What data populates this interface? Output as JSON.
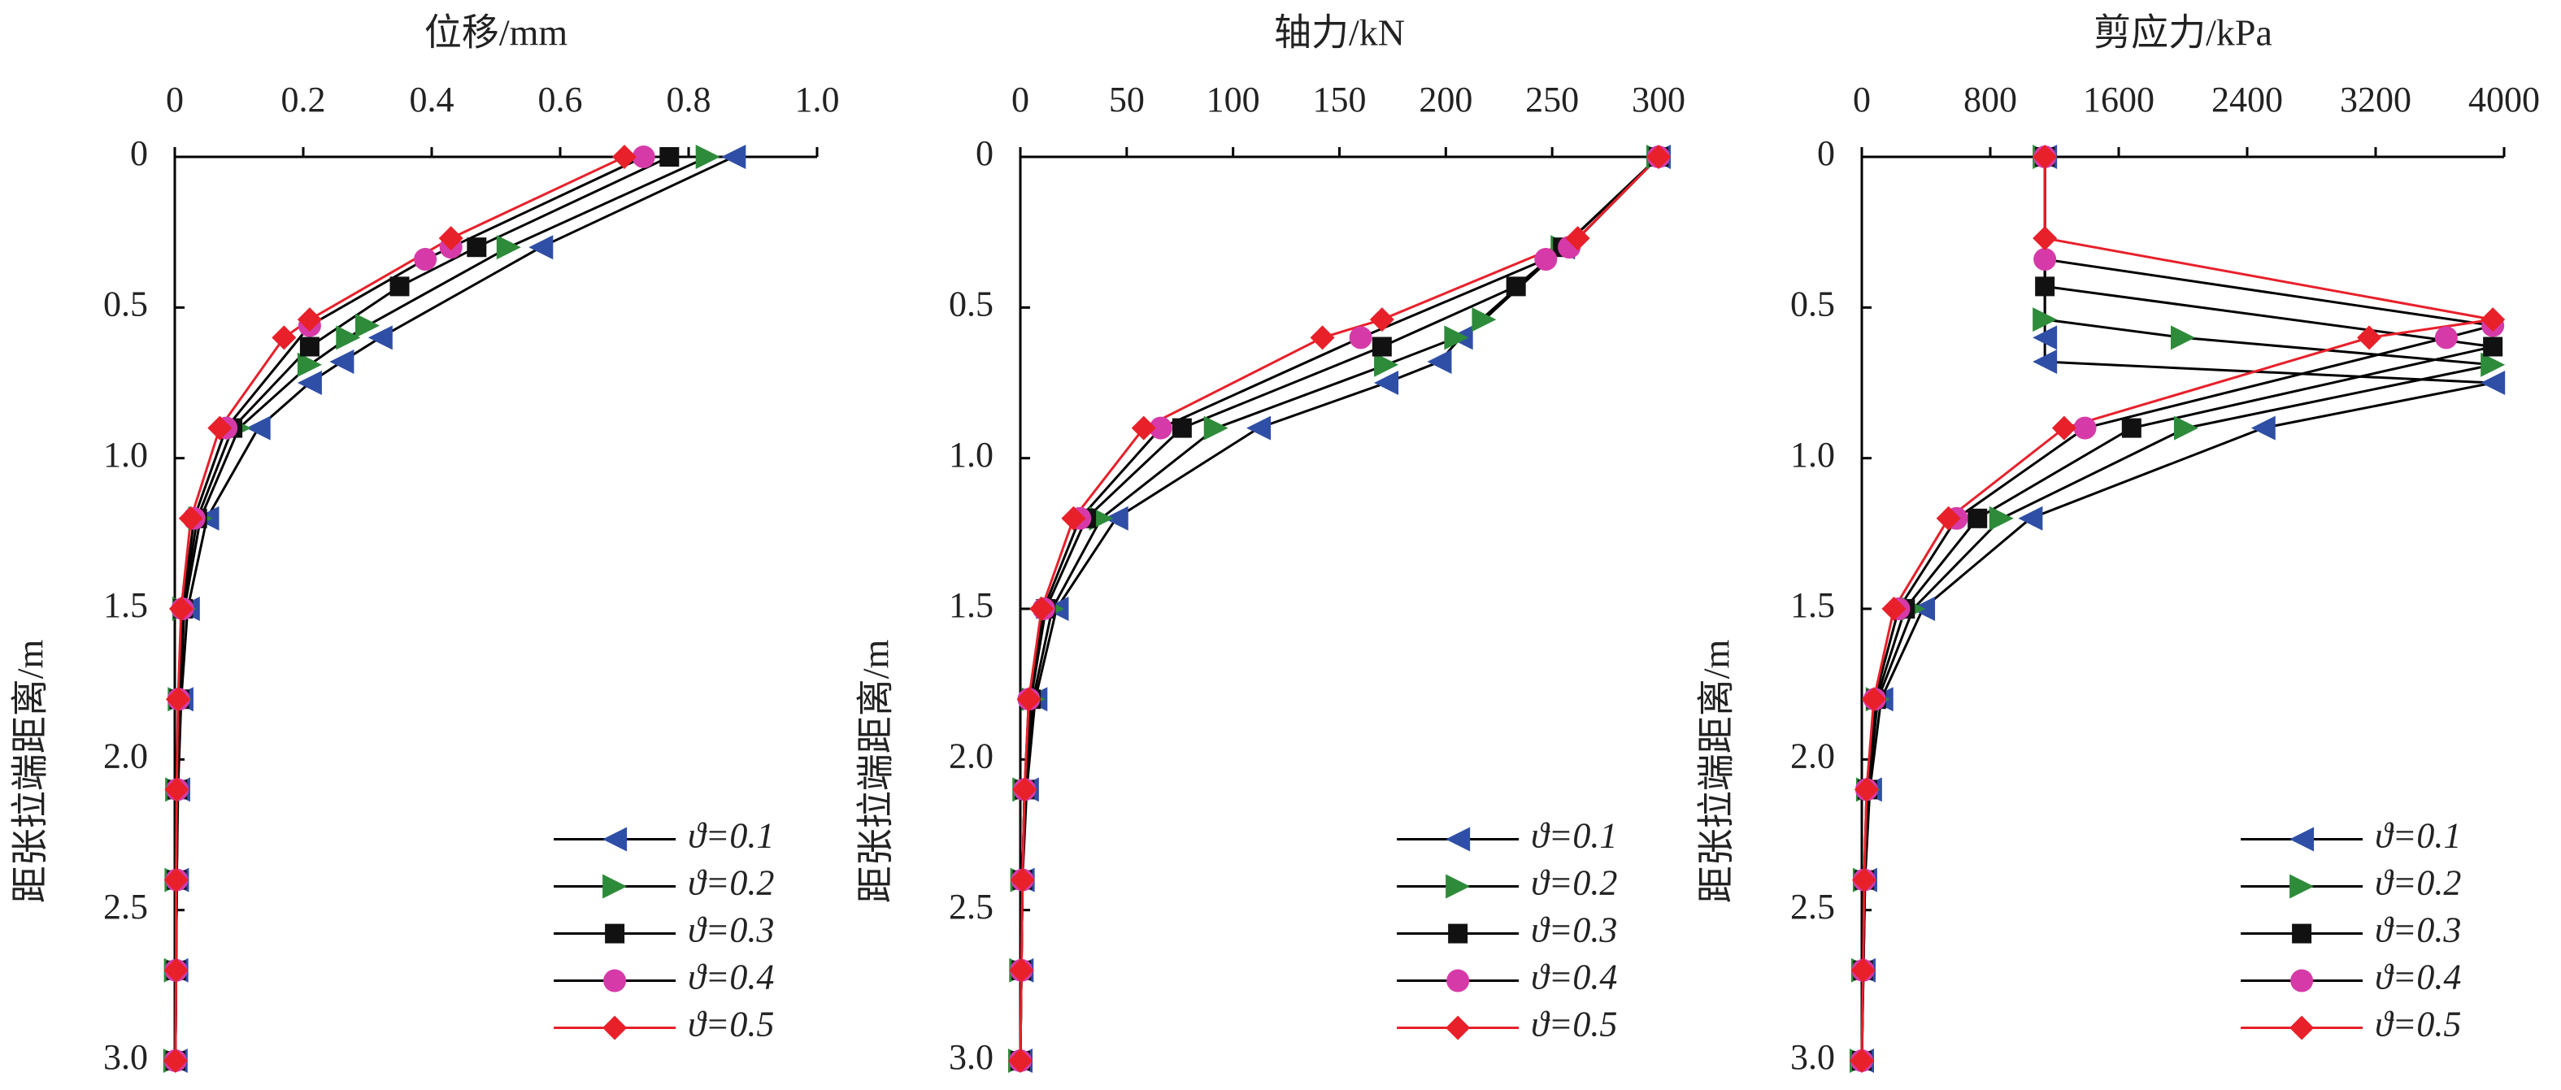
{
  "chart_data": [
    {
      "type": "line",
      "title": "位移/mm",
      "xlabel": "位移/mm",
      "ylabel": "距张拉端距离/m",
      "x_axis_position": "top",
      "y_inverted": true,
      "xlim": [
        0,
        1.0
      ],
      "ylim": [
        0,
        3.0
      ],
      "x_ticks": [
        "0",
        "0.2",
        "0.4",
        "0.6",
        "0.8",
        "1.0"
      ],
      "y_ticks": [
        "0",
        "0.5",
        "1.0",
        "1.5",
        "2.0",
        "2.5",
        "3.0"
      ],
      "legend_position": "bottom-right",
      "series": [
        {
          "name": "ϑ=0.1",
          "color": "#2f4fa6",
          "marker": "triangle-left",
          "points": [
            [
              0.87,
              0
            ],
            [
              0.57,
              0.3
            ],
            [
              0.32,
              0.6
            ],
            [
              0.26,
              0.68
            ],
            [
              0.21,
              0.75
            ],
            [
              0.13,
              0.9
            ],
            [
              0.05,
              1.2
            ],
            [
              0.02,
              1.5
            ],
            [
              0.01,
              1.8
            ],
            [
              0.005,
              2.1
            ],
            [
              0.003,
              2.4
            ],
            [
              0.002,
              2.7
            ],
            [
              0.001,
              3.0
            ]
          ]
        },
        {
          "name": "ϑ=0.2",
          "color": "#2e8b3a",
          "marker": "triangle-right",
          "points": [
            [
              0.83,
              0
            ],
            [
              0.52,
              0.3
            ],
            [
              0.3,
              0.56
            ],
            [
              0.27,
              0.6
            ],
            [
              0.21,
              0.69
            ],
            [
              0.1,
              0.9
            ],
            [
              0.04,
              1.2
            ],
            [
              0.015,
              1.5
            ],
            [
              0.008,
              1.8
            ],
            [
              0.004,
              2.1
            ],
            [
              0.003,
              2.4
            ],
            [
              0.002,
              2.7
            ],
            [
              0.001,
              3.0
            ]
          ]
        },
        {
          "name": "ϑ=0.3",
          "color": "#111111",
          "marker": "square",
          "points": [
            [
              0.77,
              0
            ],
            [
              0.47,
              0.3
            ],
            [
              0.35,
              0.43
            ],
            [
              0.21,
              0.63
            ],
            [
              0.09,
              0.9
            ],
            [
              0.035,
              1.2
            ],
            [
              0.013,
              1.5
            ],
            [
              0.007,
              1.8
            ],
            [
              0.004,
              2.1
            ],
            [
              0.003,
              2.4
            ],
            [
              0.002,
              2.7
            ],
            [
              0.001,
              3.0
            ]
          ]
        },
        {
          "name": "ϑ=0.4",
          "color": "#d63aa8",
          "marker": "circle",
          "points": [
            [
              0.73,
              0
            ],
            [
              0.43,
              0.3
            ],
            [
              0.39,
              0.34
            ],
            [
              0.21,
              0.56
            ],
            [
              0.08,
              0.9
            ],
            [
              0.03,
              1.2
            ],
            [
              0.012,
              1.5
            ],
            [
              0.006,
              1.8
            ],
            [
              0.004,
              2.1
            ],
            [
              0.003,
              2.4
            ],
            [
              0.002,
              2.7
            ],
            [
              0.001,
              3.0
            ]
          ]
        },
        {
          "name": "ϑ=0.5",
          "color": "#e8202a",
          "marker": "diamond",
          "line_color": "#e8202a",
          "points": [
            [
              0.7,
              0
            ],
            [
              0.43,
              0.27
            ],
            [
              0.21,
              0.54
            ],
            [
              0.17,
              0.6
            ],
            [
              0.07,
              0.9
            ],
            [
              0.025,
              1.2
            ],
            [
              0.01,
              1.5
            ],
            [
              0.005,
              1.8
            ],
            [
              0.003,
              2.1
            ],
            [
              0.002,
              2.4
            ],
            [
              0.002,
              2.7
            ],
            [
              0.001,
              3.0
            ]
          ]
        }
      ]
    },
    {
      "type": "line",
      "title": "轴力/kN",
      "xlabel": "轴力/kN",
      "ylabel": "距张拉端距离/m",
      "x_axis_position": "top",
      "y_inverted": true,
      "xlim": [
        0,
        300
      ],
      "ylim": [
        0,
        3.0
      ],
      "x_ticks": [
        "0",
        "50",
        "100",
        "150",
        "200",
        "250",
        "300"
      ],
      "y_ticks": [
        "0",
        "0.5",
        "1.0",
        "1.5",
        "2.0",
        "2.5",
        "3.0"
      ],
      "legend_position": "bottom-right",
      "series": [
        {
          "name": "ϑ=0.1",
          "color": "#2f4fa6",
          "marker": "triangle-left",
          "points": [
            [
              300,
              0
            ],
            [
              255,
              0.3
            ],
            [
              207,
              0.6
            ],
            [
              197,
              0.68
            ],
            [
              172,
              0.75
            ],
            [
              112,
              0.9
            ],
            [
              45,
              1.2
            ],
            [
              17,
              1.5
            ],
            [
              7,
              1.8
            ],
            [
              3,
              2.1
            ],
            [
              1,
              2.4
            ],
            [
              0.5,
              2.7
            ],
            [
              0,
              3.0
            ]
          ]
        },
        {
          "name": "ϑ=0.2",
          "color": "#2e8b3a",
          "marker": "triangle-right",
          "points": [
            [
              300,
              0
            ],
            [
              255,
              0.3
            ],
            [
              218,
              0.54
            ],
            [
              205,
              0.6
            ],
            [
              172,
              0.69
            ],
            [
              92,
              0.9
            ],
            [
              38,
              1.2
            ],
            [
              15,
              1.5
            ],
            [
              6,
              1.8
            ],
            [
              2,
              2.1
            ],
            [
              1,
              2.4
            ],
            [
              0.5,
              2.7
            ],
            [
              0,
              3.0
            ]
          ]
        },
        {
          "name": "ϑ=0.3",
          "color": "#111111",
          "marker": "square",
          "points": [
            [
              300,
              0
            ],
            [
              255,
              0.3
            ],
            [
              233,
              0.43
            ],
            [
              170,
              0.63
            ],
            [
              76,
              0.9
            ],
            [
              31,
              1.2
            ],
            [
              12,
              1.5
            ],
            [
              5,
              1.8
            ],
            [
              2,
              2.1
            ],
            [
              1,
              2.4
            ],
            [
              0.5,
              2.7
            ],
            [
              0,
              3.0
            ]
          ]
        },
        {
          "name": "ϑ=0.4",
          "color": "#d63aa8",
          "marker": "circle",
          "points": [
            [
              300,
              0
            ],
            [
              258,
              0.3
            ],
            [
              247,
              0.34
            ],
            [
              160,
              0.6
            ],
            [
              66,
              0.9
            ],
            [
              28,
              1.2
            ],
            [
              11,
              1.5
            ],
            [
              4,
              1.8
            ],
            [
              2,
              2.1
            ],
            [
              1,
              2.4
            ],
            [
              0.5,
              2.7
            ],
            [
              0,
              3.0
            ]
          ]
        },
        {
          "name": "ϑ=0.5",
          "color": "#e8202a",
          "marker": "diamond",
          "line_color": "#e8202a",
          "points": [
            [
              300,
              0
            ],
            [
              262,
              0.27
            ],
            [
              170,
              0.54
            ],
            [
              142,
              0.6
            ],
            [
              58,
              0.9
            ],
            [
              25,
              1.2
            ],
            [
              10,
              1.5
            ],
            [
              4,
              1.8
            ],
            [
              2,
              2.1
            ],
            [
              1,
              2.4
            ],
            [
              0.5,
              2.7
            ],
            [
              0,
              3.0
            ]
          ]
        }
      ]
    },
    {
      "type": "line",
      "title": "剪应力/kPa",
      "xlabel": "剪应力/kPa",
      "ylabel": "距张拉端距离/m",
      "x_axis_position": "top",
      "y_inverted": true,
      "xlim": [
        0,
        4000
      ],
      "ylim": [
        0,
        3.0
      ],
      "x_ticks": [
        "0",
        "800",
        "1600",
        "2400",
        "3200",
        "4000"
      ],
      "y_ticks": [
        "0",
        "0.5",
        "1.0",
        "1.5",
        "2.0",
        "2.5",
        "3.0"
      ],
      "legend_position": "bottom-right",
      "series": [
        {
          "name": "ϑ=0.1",
          "color": "#2f4fa6",
          "marker": "triangle-left",
          "points": [
            [
              1140,
              0
            ],
            [
              1140,
              0.6
            ],
            [
              1140,
              0.68
            ],
            [
              3930,
              0.75
            ],
            [
              2500,
              0.9
            ],
            [
              1050,
              1.2
            ],
            [
              380,
              1.5
            ],
            [
              120,
              1.8
            ],
            [
              50,
              2.1
            ],
            [
              20,
              2.4
            ],
            [
              10,
              2.7
            ],
            [
              0,
              3.0
            ]
          ]
        },
        {
          "name": "ϑ=0.2",
          "color": "#2e8b3a",
          "marker": "triangle-right",
          "points": [
            [
              1140,
              0
            ],
            [
              1140,
              0.54
            ],
            [
              2000,
              0.6
            ],
            [
              3930,
              0.69
            ],
            [
              2020,
              0.9
            ],
            [
              870,
              1.2
            ],
            [
              320,
              1.5
            ],
            [
              100,
              1.8
            ],
            [
              40,
              2.1
            ],
            [
              20,
              2.4
            ],
            [
              10,
              2.7
            ],
            [
              0,
              3.0
            ]
          ]
        },
        {
          "name": "ϑ=0.3",
          "color": "#111111",
          "marker": "square",
          "points": [
            [
              1140,
              0
            ],
            [
              1140,
              0.43
            ],
            [
              3930,
              0.63
            ],
            [
              1680,
              0.9
            ],
            [
              720,
              1.2
            ],
            [
              270,
              1.5
            ],
            [
              90,
              1.8
            ],
            [
              35,
              2.1
            ],
            [
              15,
              2.4
            ],
            [
              8,
              2.7
            ],
            [
              0,
              3.0
            ]
          ]
        },
        {
          "name": "ϑ=0.4",
          "color": "#d63aa8",
          "marker": "circle",
          "points": [
            [
              1140,
              0
            ],
            [
              1140,
              0.34
            ],
            [
              3930,
              0.56
            ],
            [
              3640,
              0.6
            ],
            [
              1390,
              0.9
            ],
            [
              590,
              1.2
            ],
            [
              230,
              1.5
            ],
            [
              80,
              1.8
            ],
            [
              30,
              2.1
            ],
            [
              15,
              2.4
            ],
            [
              8,
              2.7
            ],
            [
              0,
              3.0
            ]
          ]
        },
        {
          "name": "ϑ=0.5",
          "color": "#e8202a",
          "marker": "diamond",
          "line_color": "#e8202a",
          "points": [
            [
              1140,
              0
            ],
            [
              1140,
              0.27
            ],
            [
              3930,
              0.54
            ],
            [
              3160,
              0.6
            ],
            [
              1260,
              0.9
            ],
            [
              540,
              1.2
            ],
            [
              200,
              1.5
            ],
            [
              75,
              1.8
            ],
            [
              30,
              2.1
            ],
            [
              15,
              2.4
            ],
            [
              8,
              2.7
            ],
            [
              0,
              3.0
            ]
          ]
        }
      ]
    }
  ]
}
